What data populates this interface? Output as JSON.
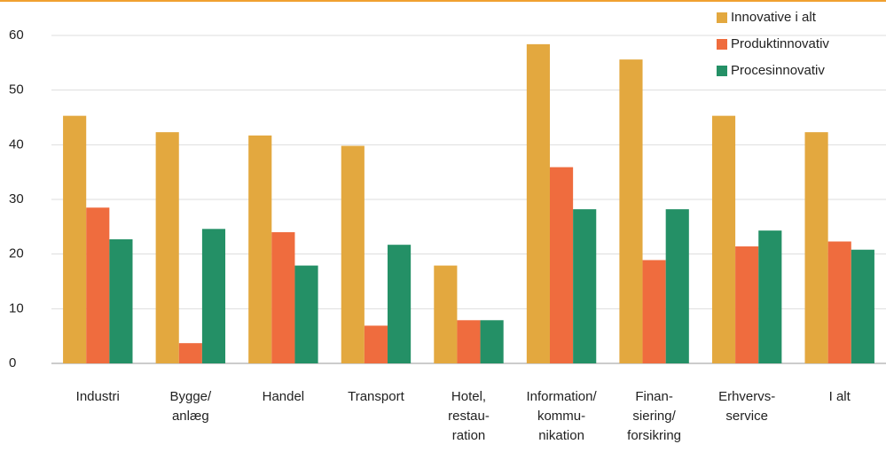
{
  "chart_data": {
    "type": "bar",
    "categories": [
      [
        "Industri"
      ],
      [
        "Bygge/",
        "anlæg"
      ],
      [
        "Handel"
      ],
      [
        "Transport"
      ],
      [
        "Hotel,",
        "restau-",
        "ration"
      ],
      [
        "Information/",
        "kommu-",
        "nikation"
      ],
      [
        "Finan-",
        "siering/",
        "forsikring"
      ],
      [
        "Erhvervs-",
        "service"
      ],
      [
        "I alt"
      ]
    ],
    "series": [
      {
        "name": "Innovative  i alt",
        "color": "#e3a83f",
        "values": [
          45.3,
          42.3,
          41.7,
          39.8,
          17.9,
          58.4,
          55.6,
          45.3,
          42.3
        ]
      },
      {
        "name": "Produktinnovativ",
        "color": "#ef6c3e",
        "values": [
          28.5,
          3.7,
          24.0,
          6.9,
          7.9,
          35.9,
          18.9,
          21.4,
          22.3
        ]
      },
      {
        "name": "Procesinnovativ",
        "color": "#249066",
        "values": [
          22.7,
          24.6,
          17.9,
          21.7,
          7.9,
          28.2,
          28.2,
          24.3,
          20.8
        ]
      }
    ],
    "ylim": [
      0,
      60
    ],
    "yticks": [
      0,
      10,
      20,
      30,
      40,
      50,
      60
    ],
    "grid": true,
    "legend": "top-right"
  }
}
